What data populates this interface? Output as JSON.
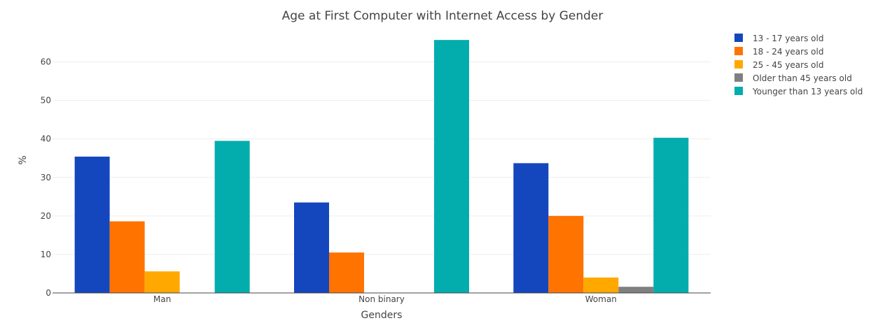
{
  "chart_data": {
    "type": "bar",
    "title": "Age at First Computer with Internet Access by Gender",
    "xlabel": "Genders",
    "ylabel": "%",
    "categories": [
      "Man",
      "Non binary",
      "Woman"
    ],
    "ylim": [
      0,
      67
    ],
    "yticks": [
      0,
      10,
      20,
      30,
      40,
      50,
      60
    ],
    "grid": true,
    "legend_position": "top-right",
    "series": [
      {
        "name": "13 - 17 years old",
        "color": "#1446bd",
        "values": [
          35.4,
          23.5,
          33.7
        ]
      },
      {
        "name": "18 - 24 years old",
        "color": "#ff7300",
        "values": [
          18.6,
          10.5,
          20.0
        ]
      },
      {
        "name": "25 - 45 years old",
        "color": "#ffa800",
        "values": [
          5.6,
          0,
          4.0
        ]
      },
      {
        "name": "Older than 45 years old",
        "color": "#808080",
        "values": [
          0,
          0,
          1.6
        ]
      },
      {
        "name": "Younger than 13 years old",
        "color": "#03adad",
        "values": [
          39.5,
          65.7,
          40.3
        ]
      }
    ]
  }
}
